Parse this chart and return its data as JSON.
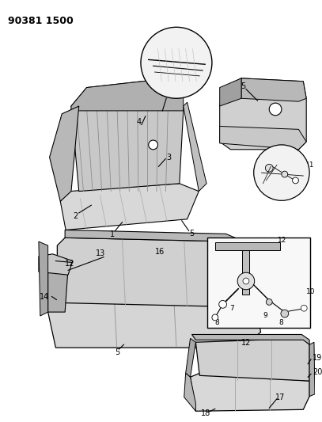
{
  "title": "90381 1500",
  "background_color": "#ffffff",
  "line_color": "#000000",
  "fill_light": "#e8e8e8",
  "fill_dark": "#c0c0c0",
  "fill_mid": "#d4d4d4"
}
